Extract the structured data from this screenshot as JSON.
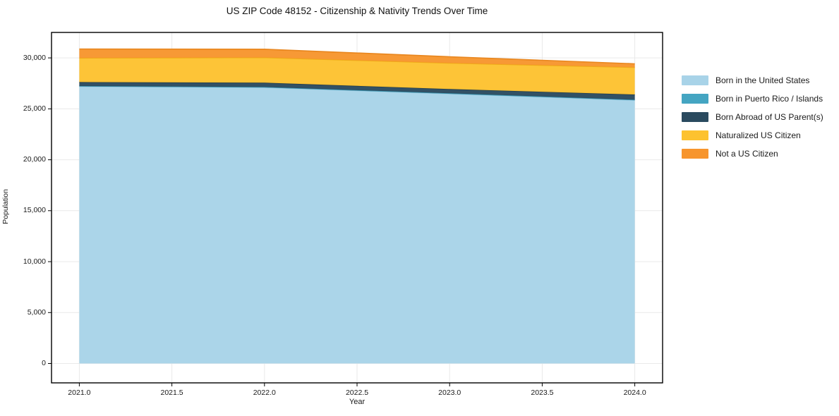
{
  "title": "US ZIP Code 48152 - Citizenship & Nativity Trends Over Time",
  "chart_data": {
    "type": "area",
    "stacked": true,
    "title": "US ZIP Code 48152 - Citizenship & Nativity Trends Over Time",
    "xlabel": "Year",
    "ylabel": "Population",
    "x": [
      2021,
      2022,
      2023,
      2024
    ],
    "series": [
      {
        "name": "Born in the United States",
        "color": "#a8d3e8",
        "edge": "#95c6de",
        "values": [
          27200,
          27100,
          26480,
          25850
        ]
      },
      {
        "name": "Born in Puerto Rico / Islands",
        "color": "#44a5c2",
        "edge": "#3b93ad",
        "values": [
          40,
          45,
          45,
          50
        ]
      },
      {
        "name": "Born Abroad of US Parent(s)",
        "color": "#2a4a5f",
        "edge": "#223d4f",
        "values": [
          390,
          420,
          415,
          510
        ]
      },
      {
        "name": "Naturalized US Citizen",
        "color": "#fdc22f",
        "edge": "#eead17",
        "values": [
          2360,
          2470,
          2550,
          2660
        ]
      },
      {
        "name": "Not a US Citizen",
        "color": "#f7952d",
        "edge": "#e8861e",
        "values": [
          880,
          820,
          620,
          350
        ]
      }
    ],
    "totals": [
      30870,
      30855,
      30110,
      29420
    ],
    "x_tick_labels": [
      "2021.0",
      "2021.5",
      "2022.0",
      "2022.5",
      "2023.0",
      "2023.5",
      "2024.0"
    ],
    "x_tick_values": [
      2021,
      2021.5,
      2022,
      2022.5,
      2023,
      2023.5,
      2024
    ],
    "y_tick_labels": [
      "0",
      "5,000",
      "10,000",
      "15,000",
      "20,000",
      "25,000",
      "30,000"
    ],
    "y_tick_values": [
      0,
      5000,
      10000,
      15000,
      20000,
      25000,
      30000
    ],
    "xlim": [
      2020.85,
      2024.15
    ],
    "ylim": [
      -1900,
      32500
    ],
    "grid": true,
    "legend_position": "right"
  }
}
